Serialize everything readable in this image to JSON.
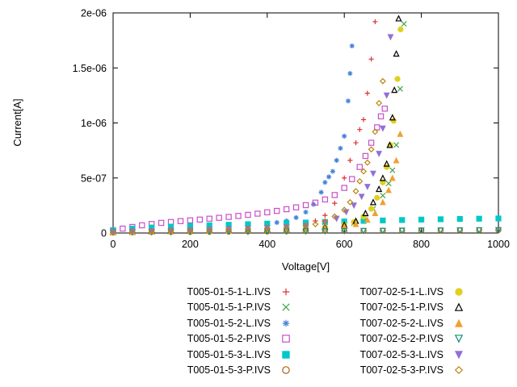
{
  "chart_data": {
    "type": "scatter",
    "title": "",
    "xlabel": "Voltage[V]",
    "ylabel": "Current[A]",
    "xlim": [
      0,
      1000
    ],
    "ylim": [
      0,
      2e-06
    ],
    "x_ticks": [
      0,
      200,
      400,
      600,
      800,
      1000
    ],
    "x_tick_labels": [
      "0",
      "200",
      "400",
      "600",
      "800",
      "1000"
    ],
    "y_ticks": [
      0,
      5e-07,
      1e-06,
      1.5e-06,
      2e-06
    ],
    "y_tick_labels": [
      "0",
      "5e-07",
      "1e-06",
      "1.5e-06",
      "2e-06"
    ],
    "grid": false,
    "legend_position": "below-plot-two-columns",
    "series": [
      {
        "name": "T005-01-5-1-L.IVS",
        "marker": "plus",
        "color": "#dc3232",
        "points": [
          [
            0,
            1.5e-08
          ],
          [
            50,
            2.5e-08
          ],
          [
            100,
            3.2e-08
          ],
          [
            150,
            3.8e-08
          ],
          [
            200,
            4.2e-08
          ],
          [
            250,
            4.8e-08
          ],
          [
            300,
            5.3e-08
          ],
          [
            350,
            6e-08
          ],
          [
            400,
            6.7e-08
          ],
          [
            450,
            7.5e-08
          ],
          [
            500,
            9e-08
          ],
          [
            525,
            1.1e-07
          ],
          [
            550,
            1.6e-07
          ],
          [
            575,
            2.7e-07
          ],
          [
            600,
            5e-07
          ],
          [
            615,
            6.6e-07
          ],
          [
            630,
            8.2e-07
          ],
          [
            640,
            9.4e-07
          ],
          [
            650,
            1.03e-06
          ],
          [
            660,
            1.27e-06
          ],
          [
            670,
            1.58e-06
          ],
          [
            680,
            1.92e-06
          ]
        ]
      },
      {
        "name": "T005-01-5-1-P.IVS",
        "marker": "cross",
        "color": "#46a346",
        "points": [
          [
            0,
            8e-09
          ],
          [
            50,
            1e-08
          ],
          [
            100,
            1.2e-08
          ],
          [
            150,
            1.4e-08
          ],
          [
            200,
            1.6e-08
          ],
          [
            250,
            1.8e-08
          ],
          [
            300,
            2e-08
          ],
          [
            350,
            2.2e-08
          ],
          [
            400,
            2.5e-08
          ],
          [
            450,
            2.8e-08
          ],
          [
            500,
            3.2e-08
          ],
          [
            550,
            4e-08
          ],
          [
            600,
            6e-08
          ],
          [
            625,
            9e-08
          ],
          [
            650,
            1.4e-07
          ],
          [
            675,
            2.2e-07
          ],
          [
            700,
            3.4e-07
          ],
          [
            715,
            4.5e-07
          ],
          [
            725,
            5.7e-07
          ],
          [
            735,
            8e-07
          ],
          [
            745,
            1.31e-06
          ],
          [
            755,
            1.9e-06
          ]
        ]
      },
      {
        "name": "T005-01-5-2-L.IVS",
        "marker": "asterisk",
        "color": "#4682dc",
        "points": [
          [
            0,
            1e-08
          ],
          [
            50,
            2e-08
          ],
          [
            100,
            2.8e-08
          ],
          [
            150,
            3.6e-08
          ],
          [
            200,
            4.4e-08
          ],
          [
            250,
            5.2e-08
          ],
          [
            300,
            6e-08
          ],
          [
            350,
            7e-08
          ],
          [
            400,
            8.4e-08
          ],
          [
            425,
            9.5e-08
          ],
          [
            450,
            1.1e-07
          ],
          [
            475,
            1.4e-07
          ],
          [
            500,
            1.9e-07
          ],
          [
            520,
            2.6e-07
          ],
          [
            540,
            3.7e-07
          ],
          [
            550,
            4.6e-07
          ],
          [
            560,
            5.1e-07
          ],
          [
            570,
            5.6e-07
          ],
          [
            580,
            6.6e-07
          ],
          [
            590,
            7.7e-07
          ],
          [
            600,
            8.8e-07
          ],
          [
            610,
            1.2e-06
          ],
          [
            615,
            1.45e-06
          ],
          [
            620,
            1.7e-06
          ]
        ]
      },
      {
        "name": "T005-01-5-2-P.IVS",
        "marker": "square-open",
        "color": "#c850c8",
        "points": [
          [
            0,
            2.5e-08
          ],
          [
            25,
            4e-08
          ],
          [
            50,
            5.5e-08
          ],
          [
            75,
            7e-08
          ],
          [
            100,
            8.2e-08
          ],
          [
            125,
            9.2e-08
          ],
          [
            150,
            1e-07
          ],
          [
            175,
            1.08e-07
          ],
          [
            200,
            1.15e-07
          ],
          [
            225,
            1.22e-07
          ],
          [
            250,
            1.3e-07
          ],
          [
            275,
            1.38e-07
          ],
          [
            300,
            1.46e-07
          ],
          [
            325,
            1.55e-07
          ],
          [
            350,
            1.65e-07
          ],
          [
            375,
            1.76e-07
          ],
          [
            400,
            1.88e-07
          ],
          [
            425,
            2.01e-07
          ],
          [
            450,
            2.16e-07
          ],
          [
            475,
            2.33e-07
          ],
          [
            500,
            2.53e-07
          ],
          [
            525,
            2.76e-07
          ],
          [
            550,
            3.05e-07
          ],
          [
            575,
            3.45e-07
          ],
          [
            600,
            4.1e-07
          ],
          [
            620,
            4.9e-07
          ],
          [
            640,
            6e-07
          ],
          [
            655,
            7e-07
          ],
          [
            670,
            8.2e-07
          ],
          [
            685,
            9.6e-07
          ],
          [
            695,
            1.06e-06
          ],
          [
            705,
            1.13e-06
          ]
        ]
      },
      {
        "name": "T005-01-5-3-L.IVS",
        "marker": "square-filled",
        "color": "#00c8c8",
        "points": [
          [
            0,
            2.5e-08
          ],
          [
            50,
            4e-08
          ],
          [
            100,
            5e-08
          ],
          [
            150,
            5.8e-08
          ],
          [
            200,
            6.4e-08
          ],
          [
            250,
            7e-08
          ],
          [
            300,
            7.5e-08
          ],
          [
            350,
            8e-08
          ],
          [
            400,
            8.5e-08
          ],
          [
            450,
            9e-08
          ],
          [
            500,
            9.5e-08
          ],
          [
            550,
            1e-07
          ],
          [
            600,
            1.05e-07
          ],
          [
            650,
            1.1e-07
          ],
          [
            700,
            1.14e-07
          ],
          [
            750,
            1.18e-07
          ],
          [
            800,
            1.22e-07
          ],
          [
            850,
            1.25e-07
          ],
          [
            900,
            1.28e-07
          ],
          [
            950,
            1.3e-07
          ],
          [
            1000,
            1.32e-07
          ]
        ]
      },
      {
        "name": "T005-01-5-3-P.IVS",
        "marker": "circle-open",
        "color": "#b06010",
        "points": [
          [
            0,
            5e-09
          ],
          [
            50,
            7e-09
          ],
          [
            100,
            9e-09
          ],
          [
            150,
            1e-08
          ],
          [
            200,
            1.1e-08
          ],
          [
            250,
            1.2e-08
          ],
          [
            300,
            1.3e-08
          ],
          [
            350,
            1.4e-08
          ],
          [
            400,
            1.5e-08
          ],
          [
            450,
            1.6e-08
          ],
          [
            500,
            1.7e-08
          ],
          [
            550,
            1.8e-08
          ],
          [
            600,
            1.9e-08
          ],
          [
            650,
            2e-08
          ],
          [
            700,
            2.1e-08
          ],
          [
            750,
            2.2e-08
          ],
          [
            800,
            2.3e-08
          ],
          [
            850,
            2.4e-08
          ],
          [
            900,
            2.5e-08
          ],
          [
            950,
            2.6e-08
          ],
          [
            1000,
            2.7e-08
          ]
        ]
      },
      {
        "name": "T007-02-5-1-L.IVS",
        "marker": "circle-filled",
        "color": "#e0d020",
        "points": [
          [
            0,
            1e-08
          ],
          [
            50,
            1.3e-08
          ],
          [
            100,
            1.6e-08
          ],
          [
            150,
            1.9e-08
          ],
          [
            200,
            2.2e-08
          ],
          [
            250,
            2.5e-08
          ],
          [
            300,
            2.8e-08
          ],
          [
            350,
            3.1e-08
          ],
          [
            400,
            3.5e-08
          ],
          [
            450,
            4e-08
          ],
          [
            500,
            4.6e-08
          ],
          [
            550,
            5.5e-08
          ],
          [
            600,
            7.5e-08
          ],
          [
            625,
            1e-07
          ],
          [
            650,
            1.5e-07
          ],
          [
            670,
            2.2e-07
          ],
          [
            685,
            3.2e-07
          ],
          [
            700,
            4.6e-07
          ],
          [
            710,
            6e-07
          ],
          [
            720,
            8e-07
          ],
          [
            728,
            1.02e-06
          ],
          [
            738,
            1.4e-06
          ],
          [
            746,
            1.85e-06
          ]
        ]
      },
      {
        "name": "T007-02-5-1-P.IVS",
        "marker": "triangle-up-open",
        "color": "#000000",
        "points": [
          [
            0,
            8e-09
          ],
          [
            50,
            1.1e-08
          ],
          [
            100,
            1.4e-08
          ],
          [
            150,
            1.7e-08
          ],
          [
            200,
            2e-08
          ],
          [
            250,
            2.3e-08
          ],
          [
            300,
            2.6e-08
          ],
          [
            350,
            3e-08
          ],
          [
            400,
            3.4e-08
          ],
          [
            450,
            3.9e-08
          ],
          [
            500,
            4.5e-08
          ],
          [
            550,
            5.5e-08
          ],
          [
            600,
            7.5e-08
          ],
          [
            630,
            1.1e-07
          ],
          [
            655,
            1.8e-07
          ],
          [
            675,
            2.8e-07
          ],
          [
            690,
            4e-07
          ],
          [
            700,
            5e-07
          ],
          [
            710,
            6.3e-07
          ],
          [
            718,
            8e-07
          ],
          [
            725,
            1.05e-06
          ],
          [
            730,
            1.3e-06
          ],
          [
            735,
            1.63e-06
          ],
          [
            741,
            1.95e-06
          ]
        ]
      },
      {
        "name": "T007-02-5-2-L.IVS",
        "marker": "triangle-up-filled",
        "color": "#f0a030",
        "points": [
          [
            0,
            6e-09
          ],
          [
            50,
            9e-09
          ],
          [
            100,
            1.2e-08
          ],
          [
            150,
            1.5e-08
          ],
          [
            200,
            1.8e-08
          ],
          [
            250,
            2.1e-08
          ],
          [
            300,
            2.4e-08
          ],
          [
            350,
            2.7e-08
          ],
          [
            400,
            3e-08
          ],
          [
            450,
            3.4e-08
          ],
          [
            500,
            3.9e-08
          ],
          [
            550,
            4.6e-08
          ],
          [
            600,
            6e-08
          ],
          [
            630,
            8e-08
          ],
          [
            660,
            1.2e-07
          ],
          [
            680,
            1.8e-07
          ],
          [
            700,
            2.8e-07
          ],
          [
            715,
            3.9e-07
          ],
          [
            725,
            5e-07
          ],
          [
            735,
            6.6e-07
          ],
          [
            745,
            9e-07
          ]
        ]
      },
      {
        "name": "T007-02-5-2-P.IVS",
        "marker": "triangle-down-open",
        "color": "#109078",
        "points": [
          [
            0,
            4e-09
          ],
          [
            50,
            6e-09
          ],
          [
            100,
            8e-09
          ],
          [
            150,
            9e-09
          ],
          [
            200,
            1e-08
          ],
          [
            250,
            1.1e-08
          ],
          [
            300,
            1.2e-08
          ],
          [
            350,
            1.3e-08
          ],
          [
            400,
            1.4e-08
          ],
          [
            450,
            1.5e-08
          ],
          [
            500,
            1.6e-08
          ],
          [
            550,
            1.7e-08
          ],
          [
            600,
            1.8e-08
          ],
          [
            650,
            1.9e-08
          ],
          [
            700,
            2e-08
          ],
          [
            750,
            2.1e-08
          ],
          [
            800,
            2.2e-08
          ],
          [
            850,
            2.3e-08
          ],
          [
            900,
            2.4e-08
          ],
          [
            950,
            2.5e-08
          ],
          [
            1000,
            2.6e-08
          ]
        ]
      },
      {
        "name": "T007-02-5-3-L.IVS",
        "marker": "triangle-down-filled",
        "color": "#9070d8",
        "points": [
          [
            0,
            1e-08
          ],
          [
            50,
            1.4e-08
          ],
          [
            100,
            1.8e-08
          ],
          [
            150,
            2.2e-08
          ],
          [
            200,
            2.6e-08
          ],
          [
            250,
            3e-08
          ],
          [
            300,
            3.4e-08
          ],
          [
            350,
            3.9e-08
          ],
          [
            400,
            4.5e-08
          ],
          [
            450,
            5.3e-08
          ],
          [
            500,
            6.5e-08
          ],
          [
            550,
            9e-08
          ],
          [
            580,
            1.3e-07
          ],
          [
            605,
            1.9e-07
          ],
          [
            625,
            2.5e-07
          ],
          [
            645,
            3.3e-07
          ],
          [
            660,
            4.2e-07
          ],
          [
            675,
            5.4e-07
          ],
          [
            690,
            7.2e-07
          ],
          [
            700,
            9.5e-07
          ],
          [
            710,
            1.25e-06
          ],
          [
            720,
            1.78e-06
          ]
        ]
      },
      {
        "name": "T007-02-5-3-P.IVS",
        "marker": "diamond-open",
        "color": "#b8860b",
        "points": [
          [
            0,
            9e-09
          ],
          [
            50,
            1.3e-08
          ],
          [
            100,
            1.7e-08
          ],
          [
            150,
            2.1e-08
          ],
          [
            200,
            2.5e-08
          ],
          [
            250,
            2.9e-08
          ],
          [
            300,
            3.3e-08
          ],
          [
            350,
            3.8e-08
          ],
          [
            400,
            4.4e-08
          ],
          [
            450,
            5.2e-08
          ],
          [
            500,
            6.5e-08
          ],
          [
            525,
            8e-08
          ],
          [
            550,
            1.05e-07
          ],
          [
            575,
            1.5e-07
          ],
          [
            600,
            2.1e-07
          ],
          [
            615,
            2.8e-07
          ],
          [
            630,
            3.8e-07
          ],
          [
            640,
            4.7e-07
          ],
          [
            650,
            5.6e-07
          ],
          [
            660,
            6.4e-07
          ],
          [
            670,
            7.6e-07
          ],
          [
            680,
            9.2e-07
          ],
          [
            690,
            1.18e-06
          ],
          [
            700,
            1.38e-06
          ]
        ]
      }
    ]
  }
}
